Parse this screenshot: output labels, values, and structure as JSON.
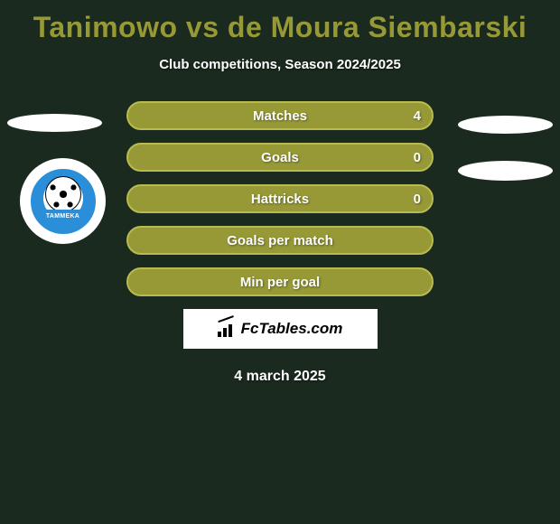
{
  "title": "Tanimowo vs de Moura Siembarski",
  "subtitle": "Club competitions, Season 2024/2025",
  "colors": {
    "background": "#1a2a1f",
    "accent": "#969936",
    "accent_border": "#b8bb4f",
    "text_light": "#ffffff",
    "badge_blue": "#2a8fd8"
  },
  "stats": [
    {
      "label": "Matches",
      "value_right": "4"
    },
    {
      "label": "Goals",
      "value_right": "0"
    },
    {
      "label": "Hattricks",
      "value_right": "0"
    },
    {
      "label": "Goals per match",
      "value_right": ""
    },
    {
      "label": "Min per goal",
      "value_right": ""
    }
  ],
  "badge": {
    "text": "TAMMEKA"
  },
  "brand": {
    "label": "FcTables.com"
  },
  "date": "4 march 2025"
}
